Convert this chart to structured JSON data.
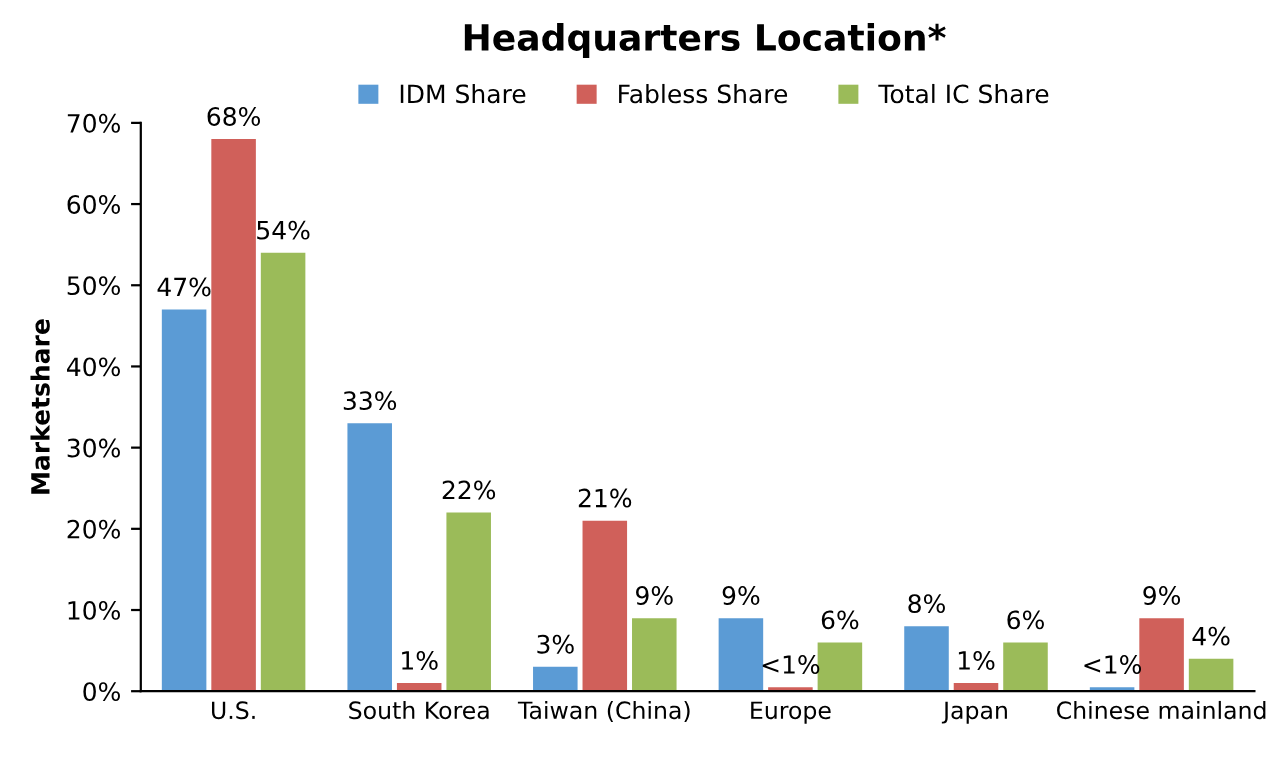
{
  "chart_data": {
    "type": "bar",
    "title": "Headquarters Location*",
    "ylabel": "Marketshare",
    "categories": [
      "U.S.",
      "South Korea",
      "Taiwan (China)",
      "Europe",
      "Japan",
      "Chinese mainland"
    ],
    "series": [
      {
        "name": "IDM Share",
        "color": "#5b9bd5",
        "values": [
          47,
          33,
          3,
          9,
          8,
          0.5
        ],
        "value_labels": [
          "47%",
          "33%",
          "3%",
          "9%",
          "8%",
          "<1%"
        ]
      },
      {
        "name": "Fabless Share",
        "color": "#d0605a",
        "values": [
          68,
          1,
          21,
          0.5,
          1,
          9
        ],
        "value_labels": [
          "68%",
          "1%",
          "21%",
          "<1%",
          "1%",
          "9%"
        ]
      },
      {
        "name": "Total IC Share",
        "color": "#9bbb59",
        "values": [
          54,
          22,
          9,
          6,
          6,
          4
        ],
        "value_labels": [
          "54%",
          "22%",
          "9%",
          "6%",
          "6%",
          "4%"
        ]
      }
    ],
    "ylim": [
      0,
      70
    ],
    "yticks": [
      {
        "value": 0,
        "label": "0%"
      },
      {
        "value": 10,
        "label": "10%"
      },
      {
        "value": 20,
        "label": "20%"
      },
      {
        "value": 30,
        "label": "30%"
      },
      {
        "value": 40,
        "label": "40%"
      },
      {
        "value": 50,
        "label": "50%"
      },
      {
        "value": 60,
        "label": "60%"
      },
      {
        "value": 70,
        "label": "70%"
      }
    ],
    "grid": false,
    "legend": "top"
  }
}
